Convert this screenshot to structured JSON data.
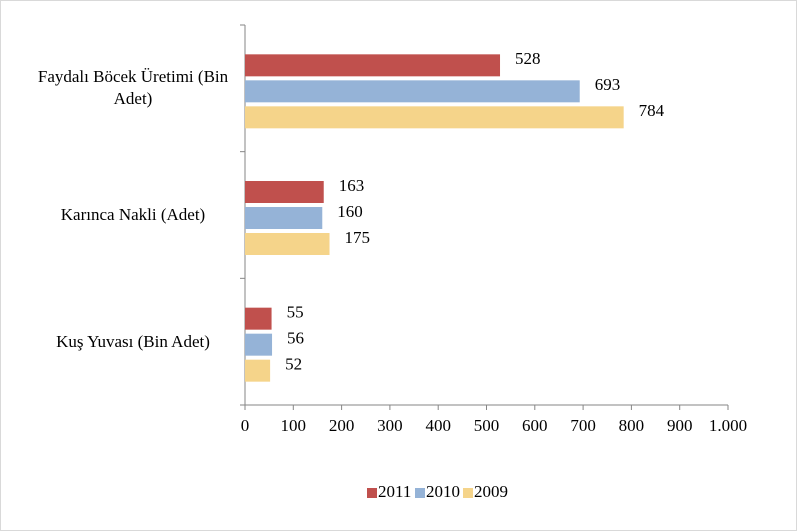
{
  "chart_data": {
    "type": "bar",
    "orientation": "horizontal",
    "categories": [
      "Faydalı Böcek Üretimi (Bin Adet)",
      "Karınca Nakli (Adet)",
      "Kuş Yuvası (Bin Adet)"
    ],
    "series": [
      {
        "name": "2011",
        "color": "#c0504d",
        "values": [
          528,
          163,
          55
        ]
      },
      {
        "name": "2010",
        "color": "#95b3d7",
        "values": [
          693,
          160,
          56
        ]
      },
      {
        "name": "2009",
        "color": "#f5d48a",
        "values": [
          784,
          175,
          52
        ]
      }
    ],
    "xlim": [
      0,
      1000
    ],
    "xticks": [
      0,
      100,
      200,
      300,
      400,
      500,
      600,
      700,
      800,
      900,
      {
        "value": 1000,
        "label": "1.000"
      }
    ],
    "legend": "bottom"
  }
}
